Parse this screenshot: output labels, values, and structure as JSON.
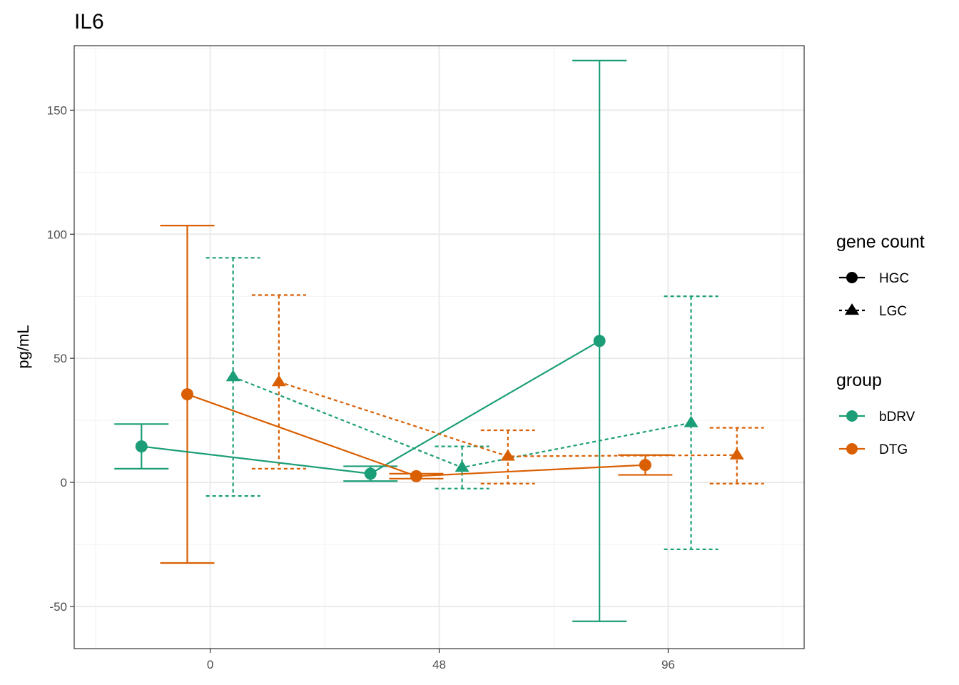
{
  "chart_data": {
    "type": "line",
    "title": "IL6",
    "xlabel": "",
    "ylabel": "pg/mL",
    "x_ticks": [
      0,
      48,
      96
    ],
    "y_ticks": [
      -50,
      0,
      50,
      100,
      150
    ],
    "xlim": [
      -28.5,
      124.5
    ],
    "ylim": [
      -67,
      176
    ],
    "grid": true,
    "colors": {
      "bDRV": "#1b9e77",
      "DTG": "#d95f02"
    },
    "legend": {
      "position": "right",
      "linetype_title": "gene count",
      "linetype_items": [
        {
          "label": "HGC",
          "shape": "circle",
          "dash": "solid"
        },
        {
          "label": "LGC",
          "shape": "triangle",
          "dash": "dotted"
        }
      ],
      "color_title": "group",
      "color_items": [
        {
          "label": "bDRV",
          "color": "#1b9e77"
        },
        {
          "label": "DTG",
          "color": "#d95f02"
        }
      ]
    },
    "series": [
      {
        "name": "bDRV HGC",
        "group": "bDRV",
        "gene_count": "HGC",
        "points": [
          {
            "x": -14.4,
            "y": 14.5,
            "lo": 5.5,
            "hi": 23.5
          },
          {
            "x": 33.6,
            "y": 3.5,
            "lo": 0.5,
            "hi": 6.5
          },
          {
            "x": 81.6,
            "y": 57.0,
            "lo": -56.0,
            "hi": 170.0
          }
        ]
      },
      {
        "name": "DTG HGC",
        "group": "DTG",
        "gene_count": "HGC",
        "points": [
          {
            "x": -4.8,
            "y": 35.5,
            "lo": -32.5,
            "hi": 103.5
          },
          {
            "x": 43.2,
            "y": 2.5,
            "lo": 1.5,
            "hi": 3.5
          },
          {
            "x": 91.2,
            "y": 7.0,
            "lo": 3.0,
            "hi": 11.0
          }
        ]
      },
      {
        "name": "bDRV LGC",
        "group": "bDRV",
        "gene_count": "LGC",
        "points": [
          {
            "x": 4.8,
            "y": 42.5,
            "lo": -5.5,
            "hi": 90.5
          },
          {
            "x": 52.8,
            "y": 6.0,
            "lo": -2.5,
            "hi": 14.5
          },
          {
            "x": 100.8,
            "y": 24.0,
            "lo": -27.0,
            "hi": 75.0
          }
        ]
      },
      {
        "name": "DTG LGC",
        "group": "DTG",
        "gene_count": "LGC",
        "points": [
          {
            "x": 14.4,
            "y": 40.5,
            "lo": 5.5,
            "hi": 75.5
          },
          {
            "x": 62.4,
            "y": 10.5,
            "lo": -0.5,
            "hi": 21.0
          },
          {
            "x": 110.4,
            "y": 11.0,
            "lo": -0.5,
            "hi": 22.0
          }
        ]
      }
    ]
  }
}
